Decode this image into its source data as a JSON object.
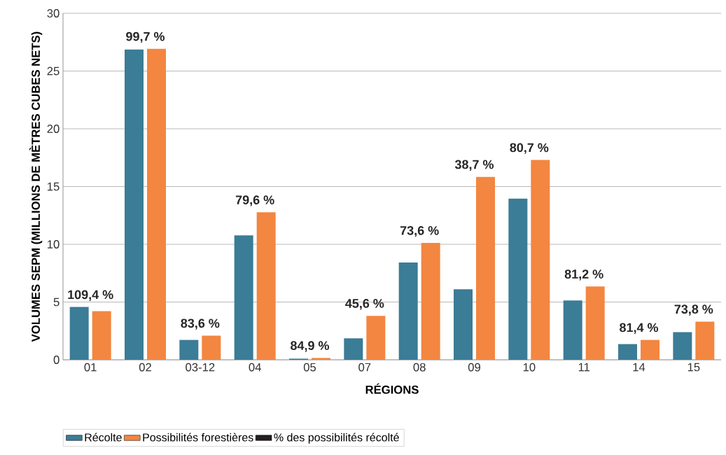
{
  "chart_data": {
    "type": "bar",
    "xlabel": "RÉGIONS",
    "ylabel": "VOLUMES SEPM (MILLIONS DE MÈTRES CUBES NETS)",
    "categories": [
      "01",
      "02",
      "03-12",
      "04",
      "05",
      "07",
      "08",
      "09",
      "10",
      "11",
      "14",
      "15"
    ],
    "series": [
      {
        "name": "Récolte",
        "color": "#3b7c96",
        "values": [
          4.57,
          26.86,
          1.72,
          10.77,
          0.1,
          1.86,
          8.42,
          6.11,
          13.96,
          5.13,
          1.36,
          2.39
        ]
      },
      {
        "name": "Possibilités forestières",
        "color": "#f38640",
        "values": [
          4.21,
          26.92,
          2.09,
          12.77,
          0.16,
          3.81,
          10.12,
          15.84,
          17.3,
          6.35,
          1.72,
          3.31
        ]
      },
      {
        "name": "% des possibilités récolté",
        "color": "#231f20",
        "values": [
          null,
          null,
          null,
          null,
          null,
          null,
          null,
          null,
          null,
          null,
          null,
          null
        ]
      }
    ],
    "annotations": [
      "109,4 %",
      "99,7 %",
      "83,6 %",
      "79,6 %",
      "84,9 %",
      "45,6 %",
      "73,6 %",
      "38,7 %",
      "80,7 %",
      "81,2 %",
      "81,4 %",
      "73,8 %"
    ],
    "ylim": [
      0,
      30
    ],
    "yticks": [
      0,
      5,
      10,
      15,
      20,
      25,
      30
    ],
    "grid": "y",
    "legend": "bottom"
  }
}
